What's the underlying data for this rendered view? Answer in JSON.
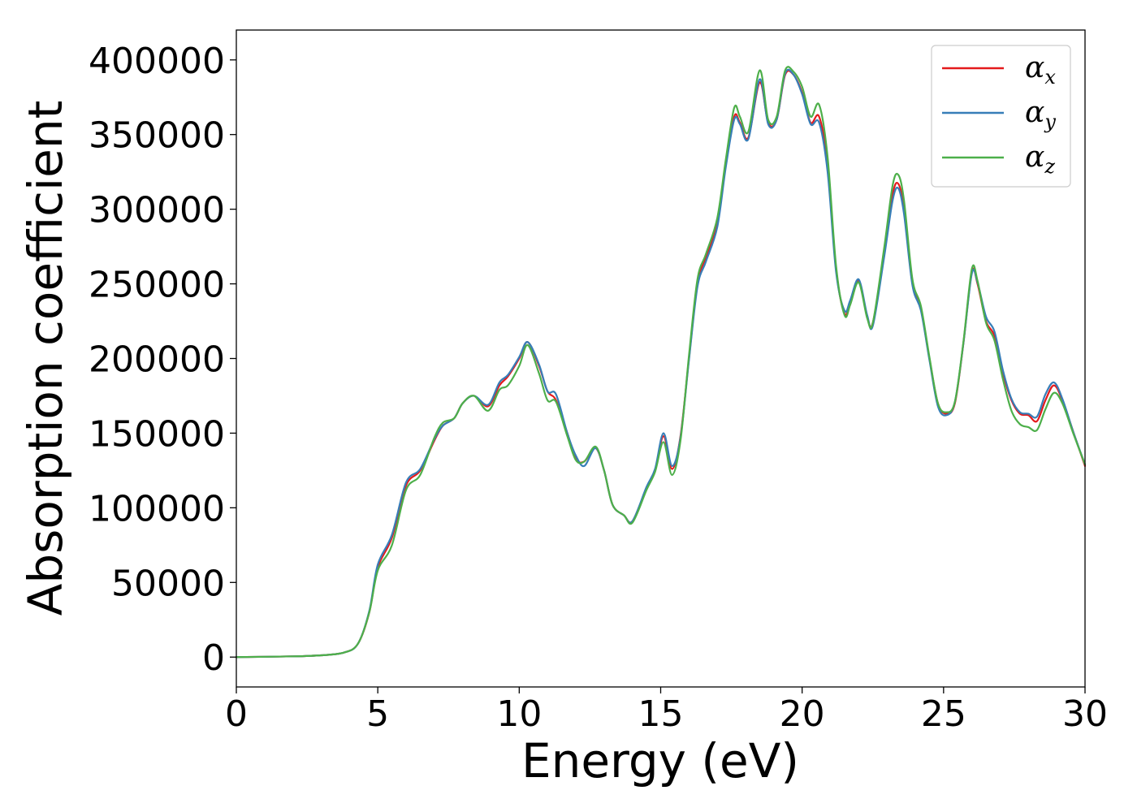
{
  "chart_data": {
    "type": "line",
    "xlabel": "Energy (eV)",
    "ylabel": "Absorption coefficient",
    "xlim": [
      0,
      30
    ],
    "ylim": [
      -20000,
      420000
    ],
    "xticks": [
      0,
      5,
      10,
      15,
      20,
      25,
      30
    ],
    "yticks": [
      0,
      50000,
      100000,
      150000,
      200000,
      250000,
      300000,
      350000,
      400000
    ],
    "xtick_labels": [
      "0",
      "5",
      "10",
      "15",
      "20",
      "25",
      "30"
    ],
    "ytick_labels": [
      "0",
      "50000",
      "100000",
      "150000",
      "200000",
      "250000",
      "300000",
      "350000",
      "400000"
    ],
    "grid": false,
    "legend_position": "top-right",
    "series": [
      {
        "name": "αx",
        "legend_symbol": "α",
        "legend_subscript": "x",
        "color": "#e41a1c",
        "x": [
          0,
          2,
          3,
          3.8,
          4.3,
          4.7,
          5.0,
          5.5,
          6.0,
          6.5,
          7.0,
          7.3,
          7.7,
          8.0,
          8.4,
          8.9,
          9.3,
          9.6,
          10.0,
          10.3,
          10.7,
          11.0,
          11.3,
          11.7,
          12.0,
          12.3,
          12.7,
          13.0,
          13.3,
          13.7,
          14.0,
          14.5,
          14.8,
          15.1,
          15.4,
          15.7,
          16.0,
          16.3,
          16.6,
          17.0,
          17.3,
          17.6,
          17.8,
          18.1,
          18.5,
          18.8,
          19.1,
          19.4,
          19.7,
          20.0,
          20.3,
          20.6,
          20.9,
          21.2,
          21.5,
          21.7,
          22.0,
          22.3,
          22.5,
          22.9,
          23.2,
          23.4,
          23.6,
          23.9,
          24.2,
          24.5,
          24.8,
          25.1,
          25.4,
          25.7,
          26.0,
          26.2,
          26.5,
          26.8,
          27.1,
          27.4,
          27.7,
          28.0,
          28.3,
          28.6,
          28.9,
          29.2,
          29.6,
          30.0
        ],
        "y": [
          0,
          500,
          1200,
          3000,
          9000,
          30000,
          60000,
          80000,
          115000,
          125000,
          145000,
          155000,
          160000,
          170000,
          175000,
          168000,
          182000,
          188000,
          200000,
          211000,
          195000,
          178000,
          172000,
          150000,
          133000,
          131000,
          140000,
          125000,
          102000,
          95000,
          91000,
          113000,
          125000,
          148000,
          126000,
          148000,
          200000,
          250000,
          268000,
          290000,
          330000,
          362000,
          358000,
          348000,
          385000,
          358000,
          360000,
          390000,
          390000,
          378000,
          358000,
          362000,
          330000,
          260000,
          230000,
          238000,
          252000,
          228000,
          224000,
          270000,
          310000,
          317000,
          300000,
          250000,
          233000,
          200000,
          170000,
          163000,
          170000,
          210000,
          258000,
          250000,
          225000,
          215000,
          190000,
          172000,
          163000,
          162000,
          158000,
          172000,
          182000,
          172000,
          150000,
          128000
        ]
      },
      {
        "name": "αy",
        "legend_symbol": "α",
        "legend_subscript": "y",
        "color": "#377eb8",
        "x": [
          0,
          2,
          3,
          3.8,
          4.3,
          4.7,
          5.0,
          5.5,
          6.0,
          6.5,
          7.0,
          7.3,
          7.7,
          8.0,
          8.4,
          8.9,
          9.3,
          9.6,
          10.0,
          10.3,
          10.7,
          11.0,
          11.3,
          11.7,
          12.0,
          12.3,
          12.7,
          13.0,
          13.3,
          13.7,
          14.0,
          14.5,
          14.8,
          15.1,
          15.4,
          15.7,
          16.0,
          16.3,
          16.6,
          17.0,
          17.3,
          17.6,
          17.8,
          18.1,
          18.5,
          18.8,
          19.1,
          19.4,
          19.7,
          20.0,
          20.3,
          20.6,
          20.9,
          21.2,
          21.5,
          21.7,
          22.0,
          22.3,
          22.5,
          22.9,
          23.2,
          23.4,
          23.6,
          23.9,
          24.2,
          24.5,
          24.8,
          25.1,
          25.4,
          25.7,
          26.0,
          26.2,
          26.5,
          26.8,
          27.1,
          27.4,
          27.7,
          28.0,
          28.3,
          28.6,
          28.9,
          29.2,
          29.6,
          30.0
        ],
        "y": [
          0,
          500,
          1200,
          3000,
          9000,
          31000,
          62000,
          82000,
          117000,
          126000,
          146000,
          155000,
          160000,
          170000,
          175000,
          169000,
          184000,
          189000,
          201000,
          211000,
          196000,
          178000,
          176000,
          150000,
          135000,
          128000,
          140000,
          125000,
          102000,
          95000,
          91000,
          114000,
          126000,
          150000,
          128000,
          147000,
          199000,
          248000,
          265000,
          288000,
          328000,
          360000,
          357000,
          347000,
          387000,
          357000,
          360000,
          391000,
          390000,
          377000,
          357000,
          358000,
          325000,
          258000,
          232000,
          239000,
          253000,
          229000,
          222000,
          268000,
          306000,
          314000,
          297000,
          249000,
          232000,
          199000,
          168000,
          162000,
          171000,
          210000,
          257000,
          251000,
          228000,
          218000,
          192000,
          173000,
          164000,
          163000,
          161000,
          176000,
          184000,
          173000,
          150000,
          129000
        ]
      },
      {
        "name": "αz",
        "legend_symbol": "α",
        "legend_subscript": "z",
        "color": "#4daf4a",
        "x": [
          0,
          2,
          3,
          3.8,
          4.3,
          4.7,
          5.0,
          5.5,
          6.0,
          6.5,
          7.0,
          7.3,
          7.7,
          8.0,
          8.4,
          8.9,
          9.3,
          9.6,
          10.0,
          10.3,
          10.7,
          11.0,
          11.3,
          11.7,
          12.0,
          12.3,
          12.7,
          13.0,
          13.3,
          13.7,
          14.0,
          14.5,
          14.8,
          15.1,
          15.4,
          15.7,
          16.0,
          16.3,
          16.6,
          17.0,
          17.3,
          17.6,
          17.8,
          18.1,
          18.5,
          18.8,
          19.1,
          19.4,
          19.7,
          20.0,
          20.3,
          20.6,
          20.9,
          21.2,
          21.5,
          21.7,
          22.0,
          22.3,
          22.5,
          22.9,
          23.2,
          23.4,
          23.6,
          23.9,
          24.2,
          24.5,
          24.8,
          25.1,
          25.4,
          25.7,
          26.0,
          26.2,
          26.5,
          26.8,
          27.1,
          27.4,
          27.7,
          28.0,
          28.3,
          28.6,
          28.9,
          29.2,
          29.6,
          30.0
        ],
        "y": [
          0,
          500,
          1200,
          3000,
          9000,
          30000,
          58000,
          75000,
          112000,
          122000,
          147000,
          157000,
          160000,
          170000,
          175000,
          165000,
          179000,
          182000,
          195000,
          209000,
          190000,
          172000,
          171000,
          148000,
          132000,
          131000,
          141000,
          125000,
          102000,
          95000,
          90000,
          112000,
          124000,
          144000,
          122000,
          145000,
          202000,
          253000,
          270000,
          294000,
          333000,
          368000,
          362000,
          352000,
          393000,
          360000,
          362000,
          393000,
          392000,
          382000,
          362000,
          370000,
          335000,
          262000,
          229000,
          236000,
          251000,
          227000,
          224000,
          274000,
          316000,
          323000,
          306000,
          253000,
          235000,
          201000,
          170000,
          164000,
          171000,
          211000,
          260000,
          252000,
          224000,
          212000,
          186000,
          165000,
          156000,
          154000,
          152000,
          166000,
          177000,
          170000,
          149000,
          129000
        ]
      }
    ]
  }
}
